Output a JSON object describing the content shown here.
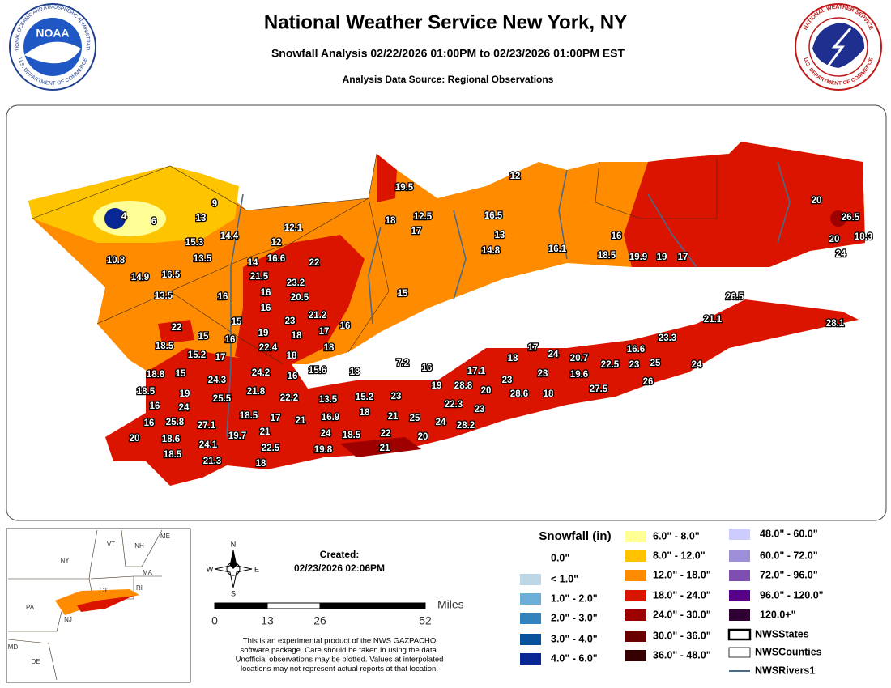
{
  "header": {
    "title": "National Weather Service New York, NY",
    "subtitle": "Snowfall Analysis 02/22/2026 01:00PM to 02/23/2026 01:00PM EST",
    "source": "Analysis Data Source: Regional Observations"
  },
  "logos": {
    "noaa": {
      "center": "NOAA",
      "top": "NATIONAL OCEANIC AND ATMOSPHERIC ADMINISTRATION",
      "bottom": "U.S. DEPARTMENT OF COMMERCE"
    },
    "nws": {
      "top": "NATIONAL WEATHER SERVICE",
      "bottom": "U.S. DEPARTMENT OF COMMERCE"
    }
  },
  "map": {
    "snowfall_reports": [
      9,
      4,
      6,
      13,
      15.3,
      14.4,
      13.5,
      10.8,
      16.5,
      14.9,
      13.5,
      16,
      12.1,
      12,
      16.6,
      14,
      22,
      21.5,
      23.2,
      16,
      20.5,
      16,
      15,
      21.2,
      23,
      22,
      19,
      18,
      17,
      16,
      15,
      16,
      18.5,
      22.4,
      18,
      15.2,
      17,
      18,
      19.5,
      18,
      12.5,
      17,
      16.5,
      13,
      14.8,
      12,
      15,
      16.1,
      16,
      18.5,
      19.9,
      19,
      17,
      20,
      26.5,
      20,
      18.3,
      24,
      26.5,
      21.1,
      28.1,
      23.3,
      16.6,
      17,
      24,
      18,
      20.7,
      22.5,
      23,
      25,
      24,
      26,
      27.5,
      19.6,
      23,
      23,
      17.1,
      18,
      7.2,
      16,
      15.6,
      16,
      24.2,
      18.8,
      15,
      24.3,
      19,
      28.8,
      20,
      28.6,
      18,
      18.5,
      19,
      21.8,
      22.2,
      13.5,
      15.2,
      23,
      16,
      24,
      25.5,
      22.3,
      23,
      18,
      21,
      18.5,
      17,
      21,
      16.9,
      25,
      24,
      28.2,
      16,
      25.8,
      27.1,
      21,
      24,
      18.5,
      22,
      20,
      20,
      18.6,
      19.7,
      24.1,
      22.5,
      19.8,
      21,
      18.5,
      21.3,
      18
    ]
  },
  "inset": {
    "labels": [
      "VT",
      "NH",
      "ME",
      "NY",
      "MA",
      "CT",
      "RI",
      "PA",
      "NJ",
      "MD",
      "DE"
    ]
  },
  "compass": {
    "north": "N",
    "east": "E",
    "south": "S",
    "west": "W"
  },
  "created": {
    "label": "Created:",
    "timestamp": "02/23/2026 02:06PM"
  },
  "scale": {
    "unit": "Miles",
    "ticks": [
      0,
      13,
      26,
      52
    ]
  },
  "disclaimer": [
    "This is an experimental product of the NWS GAZPACHO",
    "software package. Care should be taken in using the data.",
    "Unofficial observations may be plotted. Values at interpolated",
    "locations may not represent actual reports at that location."
  ],
  "legend": {
    "title": "Snowfall (in)",
    "items": [
      {
        "label": "0.0\"",
        "color": "#ffffff"
      },
      {
        "label": "< 1.0\"",
        "color": "#bdd7e7"
      },
      {
        "label": "1.0\" - 2.0\"",
        "color": "#6baed6"
      },
      {
        "label": "2.0\" - 3.0\"",
        "color": "#3182bd"
      },
      {
        "label": "3.0\" - 4.0\"",
        "color": "#08519c"
      },
      {
        "label": "4.0\" - 6.0\"",
        "color": "#082694"
      },
      {
        "label": "6.0\" - 8.0\"",
        "color": "#ffff96"
      },
      {
        "label": "8.0\" - 12.0\"",
        "color": "#ffc400"
      },
      {
        "label": "12.0\" - 18.0\"",
        "color": "#ff8c00"
      },
      {
        "label": "18.0\" - 24.0\"",
        "color": "#db1400"
      },
      {
        "label": "24.0\" - 30.0\"",
        "color": "#9e0000"
      },
      {
        "label": "30.0\" - 36.0\"",
        "color": "#690000"
      },
      {
        "label": "36.0\" - 48.0\"",
        "color": "#360000"
      },
      {
        "label": "48.0\" - 60.0\"",
        "color": "#ccccff"
      },
      {
        "label": "60.0\" - 72.0\"",
        "color": "#9f8fd8"
      },
      {
        "label": "72.0\" - 96.0\"",
        "color": "#7e4eb0"
      },
      {
        "label": "96.0\" - 120.0\"",
        "color": "#570088"
      },
      {
        "label": "120.0+\"",
        "color": "#2e0033"
      }
    ],
    "layers": [
      "NWSStates",
      "NWSCounties",
      "NWSRivers1"
    ]
  }
}
